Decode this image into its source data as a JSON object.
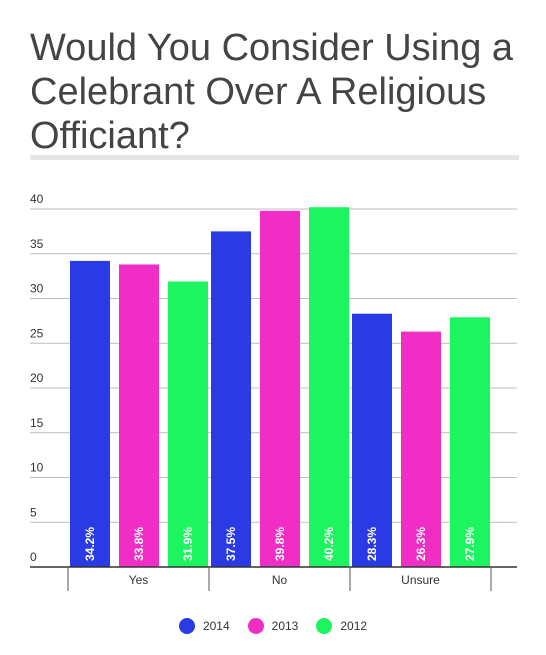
{
  "title": "Would You Consider Using a Celebrant Over A Religious Officiant?",
  "chart_data": {
    "type": "bar",
    "categories": [
      "Yes",
      "No",
      "Unsure"
    ],
    "series": [
      {
        "name": "2014",
        "color": "#2a3be6",
        "values": [
          34.2,
          37.5,
          28.3
        ],
        "labels": [
          "34.2%",
          "37.5%",
          "28.3%"
        ]
      },
      {
        "name": "2013",
        "color": "#f02ec6",
        "values": [
          33.8,
          39.8,
          26.3
        ],
        "labels": [
          "33.8%",
          "39.8%",
          "26.3%"
        ]
      },
      {
        "name": "2012",
        "color": "#1cf560",
        "values": [
          31.9,
          40.2,
          27.9
        ],
        "labels": [
          "31.9%",
          "40.2%",
          "27.9%"
        ]
      }
    ],
    "ylim": [
      0,
      40
    ],
    "yticks": [
      "0",
      "5",
      "10",
      "15",
      "20",
      "25",
      "30",
      "35",
      "40"
    ],
    "grid": true,
    "legend_position": "bottom"
  }
}
